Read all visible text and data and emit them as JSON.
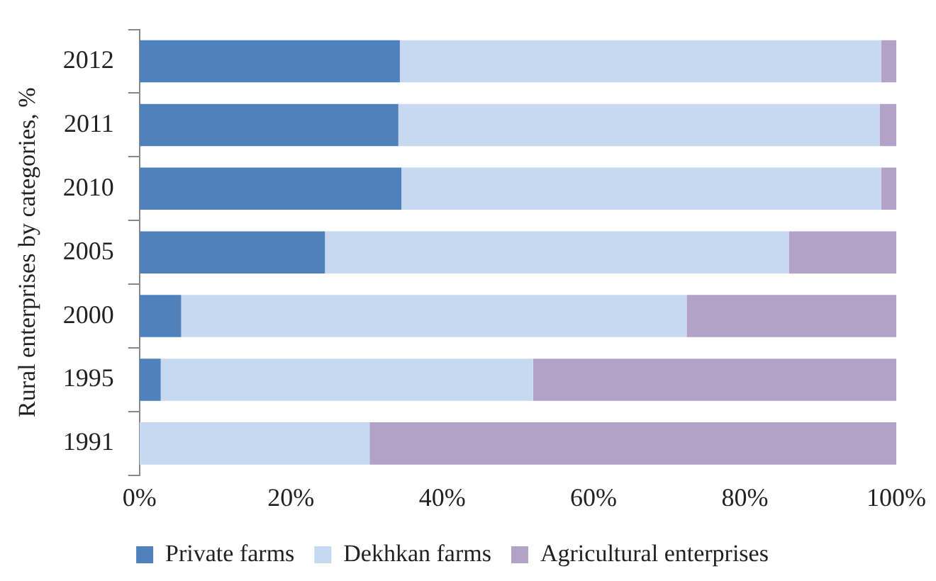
{
  "chart_data": {
    "type": "bar",
    "orientation": "horizontal",
    "stacked": true,
    "ylabel": "Rural enterprises by categories, %",
    "categories": [
      "2012",
      "2011",
      "2010",
      "2005",
      "2000",
      "1995",
      "1991"
    ],
    "series": [
      {
        "name": "Private farms",
        "color": "#4f81bd",
        "values": [
          34.4,
          34.2,
          34.6,
          24.5,
          5.5,
          2.8,
          0
        ]
      },
      {
        "name": "Dekhkan farms",
        "color": "#c6d9f1",
        "values": [
          63.6,
          63.6,
          63.4,
          61.3,
          66.8,
          49.2,
          30.4
        ]
      },
      {
        "name": "Agricultural enterprises",
        "color": "#b3a2c7",
        "values": [
          2.0,
          2.2,
          2.0,
          14.2,
          27.7,
          48.0,
          69.6
        ]
      }
    ],
    "xlim": [
      0,
      100
    ],
    "xticks": [
      {
        "value": 0,
        "label": "0%"
      },
      {
        "value": 20,
        "label": "20%"
      },
      {
        "value": 40,
        "label": "40%"
      },
      {
        "value": 60,
        "label": "60%"
      },
      {
        "value": 80,
        "label": "80%"
      },
      {
        "value": 100,
        "label": "100%"
      }
    ],
    "grid": false,
    "legend": "bottom"
  }
}
